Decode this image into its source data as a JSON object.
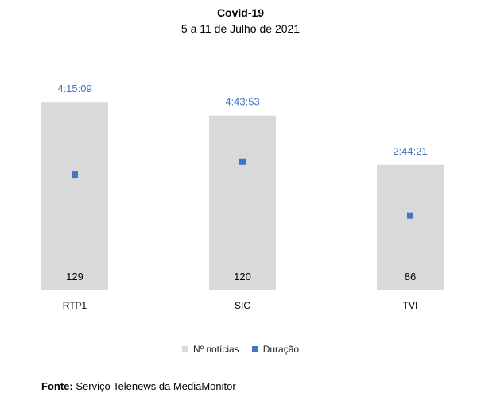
{
  "chart_data": {
    "type": "bar",
    "title": "Covid-19",
    "subtitle": "5 a 11 de Julho de 2021",
    "categories": [
      "RTP1",
      "SIC",
      "TVI"
    ],
    "series": [
      {
        "name": "Nº notícias",
        "kind": "bar",
        "values": [
          129,
          120,
          86
        ],
        "value_labels": [
          "129",
          "120",
          "86"
        ],
        "color": "#d9d9d9"
      },
      {
        "name": "Duração",
        "kind": "marker",
        "values_seconds": [
          15309,
          17033,
          9861
        ],
        "value_labels": [
          "4:15:09",
          "4:43:53",
          "2:44:21"
        ],
        "color": "#4472c4"
      }
    ],
    "xlabel": "",
    "ylabel": "",
    "ylim_bars": [
      0,
      145
    ],
    "ylim_duration_seconds": [
      0,
      28000
    ],
    "grid": false,
    "legend_position": "bottom"
  },
  "source": {
    "label": "Fonte:",
    "text": "Serviço Telenews da MediaMonitor"
  }
}
